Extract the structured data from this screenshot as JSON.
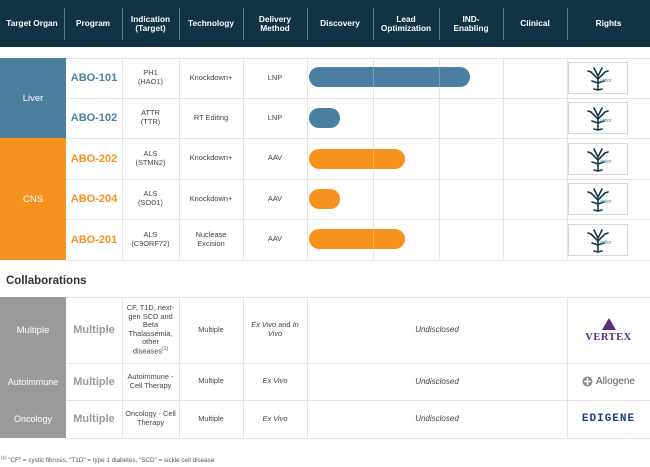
{
  "colors": {
    "header_bg": "#103444",
    "liver": "#4a7fa0",
    "cns": "#f6921e",
    "collab_gray": "#9a9a9a",
    "vertex_purple": "#5a2d82",
    "edigene_blue": "#1f3a8c"
  },
  "header": {
    "target_organ": "Target Organ",
    "program": "Program",
    "indication": "Indication (Target)",
    "technology": "Technology",
    "delivery": "Delivery Method",
    "discovery": "Discovery",
    "lead_opt": "Lead Optimization",
    "ind": "IND-Enabling",
    "clinical": "Clinical",
    "rights": "Rights"
  },
  "organs": {
    "liver": "Liver",
    "cns": "CNS"
  },
  "programs": [
    {
      "name": "ABO-101",
      "indication": "PH1",
      "target": "(HAO1)",
      "technology": "Knockdown+",
      "delivery": "LNP",
      "progress_stages": 2.5,
      "rights_icon": "arbor-logo"
    },
    {
      "name": "ABO-102",
      "indication": "ATTR",
      "target": "(TTR)",
      "technology": "RT Editing",
      "delivery": "LNP",
      "progress_stages": 0.5,
      "rights_icon": "arbor-logo"
    },
    {
      "name": "ABO-202",
      "indication": "ALS",
      "target": "(STMN2)",
      "technology": "Knockdown+",
      "delivery": "AAV",
      "progress_stages": 1.5,
      "rights_icon": "arbor-logo"
    },
    {
      "name": "ABO-204",
      "indication": "ALS",
      "target": "(SOD1)",
      "technology": "Knockdown+",
      "delivery": "AAV",
      "progress_stages": 0.5,
      "rights_icon": "arbor-logo"
    },
    {
      "name": "ABO-201",
      "indication": "ALS",
      "target": "(C9ORF72)",
      "technology": "Nuclease Excision",
      "delivery": "AAV",
      "progress_stages": 1.5,
      "rights_icon": "arbor-logo"
    }
  ],
  "arbor_logo_text": "arbor",
  "collaborations_title": "Collaborations",
  "collaborations": [
    {
      "organ": "Multiple",
      "program": "Multiple",
      "indication": "CF, T1D, next-gen SCD and Beta Thalassemia, other diseases",
      "indication_sup": "(1)",
      "technology": "Multiple",
      "delivery_a": "Ex Vivo",
      "delivery_mid": " and ",
      "delivery_b": "In Vivo",
      "status": "Undisclosed",
      "partner": "VERTEX"
    },
    {
      "organ": "Autoimmune",
      "program": "Multiple",
      "indication": "Autoimmune - Cell Therapy",
      "technology": "Multiple",
      "delivery_a": "Ex Vivo",
      "status": "Undisclosed",
      "partner": "Allogene"
    },
    {
      "organ": "Oncology",
      "program": "Multiple",
      "indication": "Oncology - Cell Therapy",
      "technology": "Multiple",
      "delivery_a": "Ex Vivo",
      "status": "Undisclosed",
      "partner": "EDIGENE"
    }
  ],
  "footnote": {
    "sup": "(1)",
    "text": " \"CF\" = cystic fibrosis, \"T1D\" = type 1 diabetes, \"SCD\" = sickle cell disease"
  }
}
